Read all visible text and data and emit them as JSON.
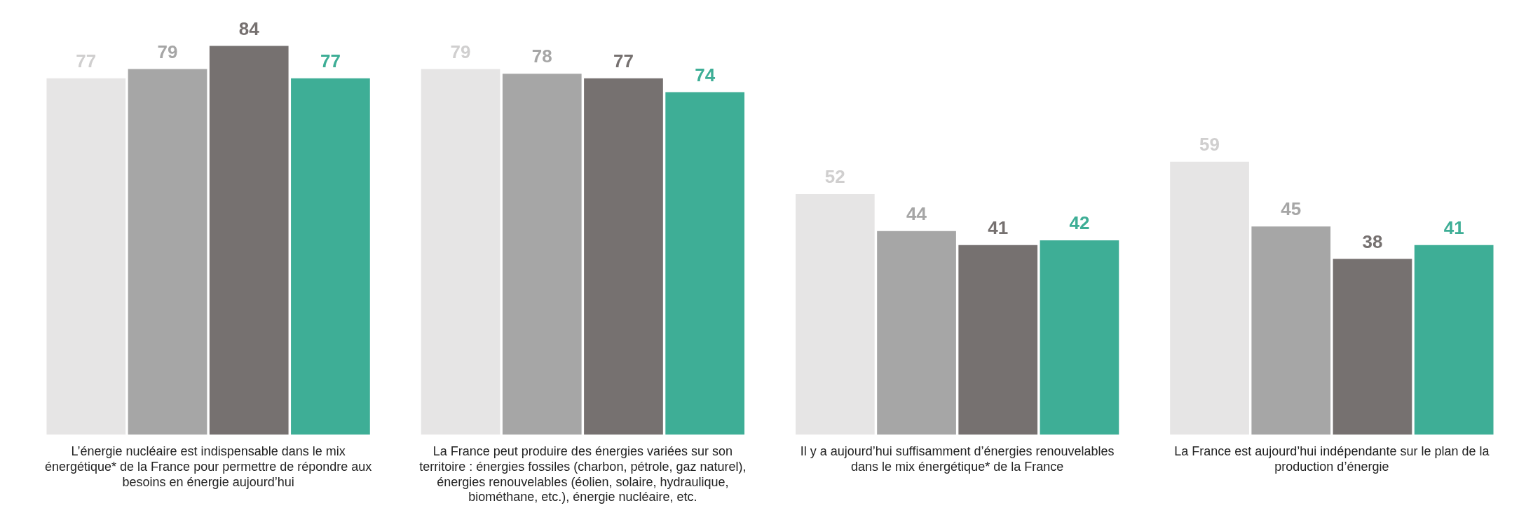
{
  "chart_data": {
    "type": "bar",
    "categories": [
      "L’énergie nucléaire est indispensable dans le mix énergétique* de la France pour permettre de répondre aux besoins en énergie aujourd’hui",
      "La France peut produire des énergies variées sur son territoire : énergies fossiles (charbon, pétrole, gaz naturel), énergies renouvelables (éolien, solaire, hydraulique, biométhane, etc.), énergie nucléaire, etc.",
      "Il y a aujourd’hui suffisamment d’énergies renouvelables dans le mix énergétique* de la France",
      "La France est aujourd’hui indépendante sur le plan de la production d’énergie"
    ],
    "series": [
      {
        "color": "#e6e5e5",
        "values": [
          77,
          79,
          52,
          59
        ]
      },
      {
        "color": "#a6a6a6",
        "values": [
          79,
          78,
          44,
          45
        ]
      },
      {
        "color": "#767170",
        "values": [
          84,
          77,
          41,
          38
        ]
      },
      {
        "color": "#3eae96",
        "values": [
          77,
          74,
          42,
          41
        ]
      }
    ],
    "data_labels": true,
    "tick_labels": "x",
    "grid": false,
    "legend": false
  }
}
